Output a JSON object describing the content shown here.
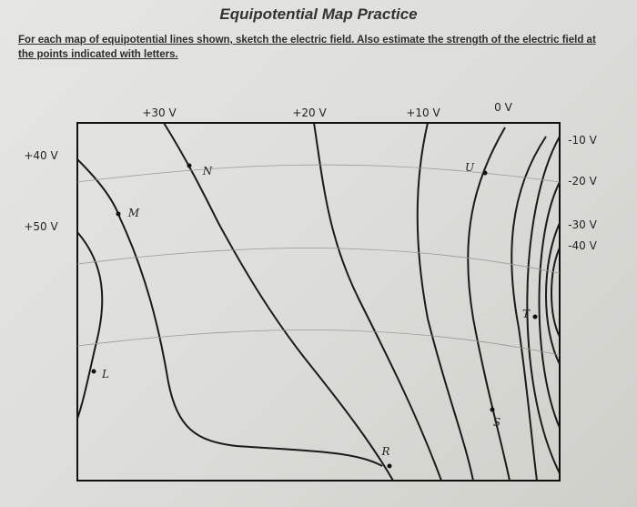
{
  "header": {
    "title": "Equipotential Map Practice",
    "instructions": [
      "For each map of equipotential lines shown, sketch the electric field.  Also estimate the strength of the electric field at",
      "the points indicated with letters."
    ]
  },
  "map": {
    "voltage_labels": [
      "+30 V",
      "+20 V",
      "+10 V",
      "0 V",
      "-10 V",
      "-20 V",
      "-30 V",
      "-40 V",
      "+40 V",
      "+50 V"
    ],
    "points": [
      "N",
      "M",
      "U",
      "T",
      "L",
      "S",
      "R"
    ]
  }
}
